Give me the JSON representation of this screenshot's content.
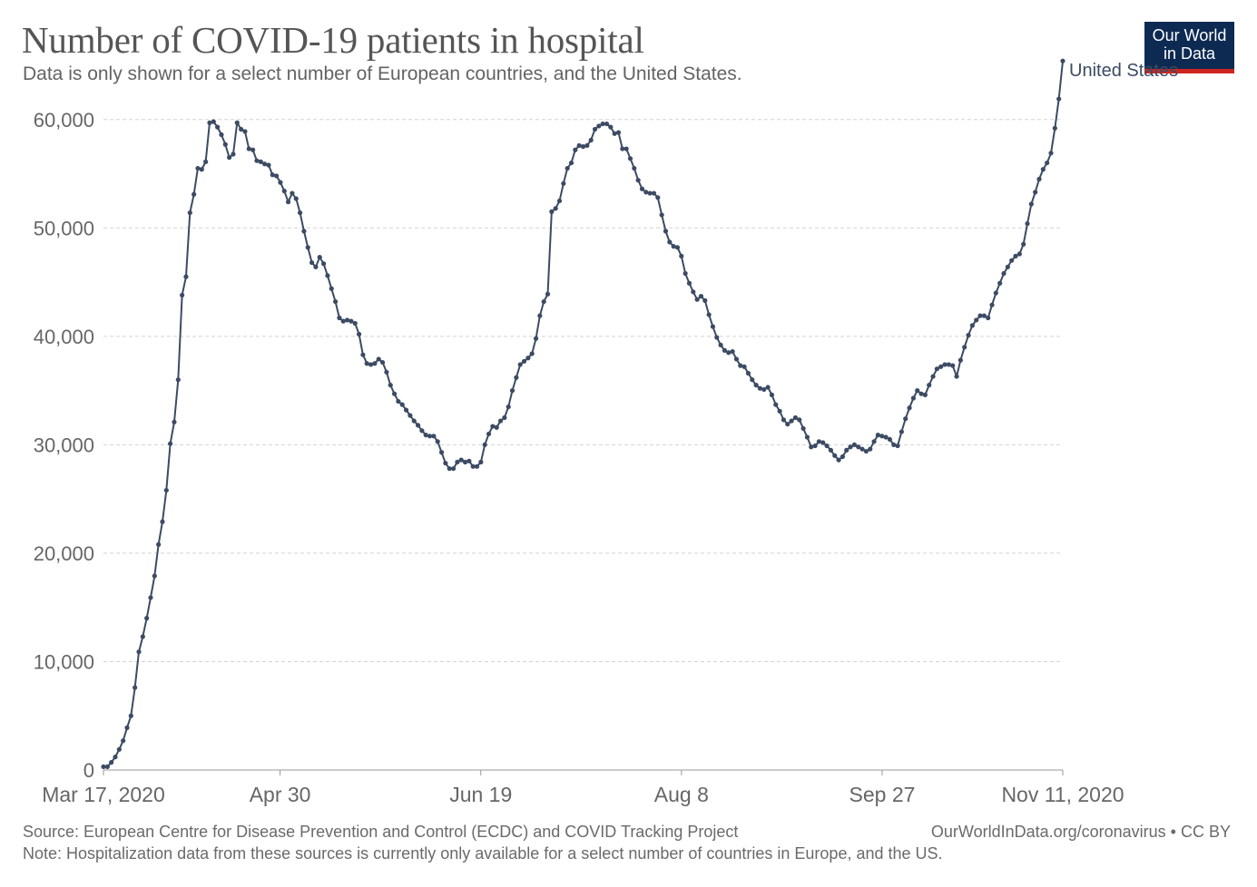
{
  "title": "Number of COVID-19 patients in hospital",
  "subtitle": "Data is only shown for a select number of European countries, and the United States.",
  "logo": {
    "line1": "Our World",
    "line2": "in Data",
    "bg": "#0d2a52",
    "accent": "#ce261e"
  },
  "footer": {
    "source": "Source: European Centre for Disease Prevention and Control (ECDC) and COVID Tracking Project",
    "note": "Note: Hospitalization data from these sources is currently only available for a select number of countries in Europe, and the US.",
    "url_license": "OurWorldInData.org/coronavirus • CC BY"
  },
  "chart_data": {
    "type": "line",
    "x_tick_labels": [
      "Mar 17, 2020",
      "Apr 30",
      "Jun 19",
      "Aug 8",
      "Sep 27",
      "Nov 11, 2020"
    ],
    "x_tick_dates": [
      "2020-03-17",
      "2020-04-30",
      "2020-06-19",
      "2020-08-08",
      "2020-09-27",
      "2020-11-11"
    ],
    "y_ticks": [
      0,
      10000,
      20000,
      30000,
      40000,
      50000,
      60000
    ],
    "y_tick_labels": [
      "0",
      "10,000",
      "20,000",
      "30,000",
      "40,000",
      "50,000",
      "60,000"
    ],
    "ylim": [
      0,
      65000
    ],
    "grid": "horizontal dashed",
    "series": [
      {
        "name": "United States",
        "color": "#3c4b63",
        "start_date": "2020-03-17",
        "values": [
          300,
          300,
          700,
          1200,
          1900,
          2700,
          3900,
          5000,
          7600,
          10900,
          12300,
          14000,
          15900,
          17900,
          20800,
          22900,
          25800,
          30100,
          32100,
          36000,
          43800,
          45500,
          51400,
          53100,
          55500,
          55400,
          56100,
          59700,
          59800,
          59300,
          58600,
          57700,
          56500,
          56800,
          59700,
          59100,
          58900,
          57300,
          57200,
          56200,
          56100,
          55900,
          55800,
          54900,
          54800,
          54200,
          53400,
          52400,
          53200,
          52700,
          51400,
          49700,
          48200,
          46800,
          46400,
          47300,
          46700,
          45600,
          44400,
          43200,
          41700,
          41400,
          41500,
          41400,
          41200,
          40200,
          38300,
          37500,
          37400,
          37500,
          37900,
          37600,
          36700,
          35500,
          34700,
          34000,
          33700,
          33200,
          32700,
          32200,
          31800,
          31300,
          30900,
          30800,
          30800,
          30300,
          29300,
          28300,
          27800,
          27800,
          28400,
          28600,
          28400,
          28500,
          28000,
          28000,
          28400,
          30000,
          31000,
          31700,
          31600,
          32200,
          32500,
          33500,
          35000,
          36200,
          37400,
          37700,
          38000,
          38400,
          39800,
          41900,
          43200,
          43900,
          51500,
          51800,
          52500,
          54100,
          55500,
          56000,
          57200,
          57600,
          57500,
          57600,
          58100,
          59100,
          59400,
          59600,
          59600,
          59300,
          58700,
          58800,
          57300,
          57300,
          56400,
          55500,
          54400,
          53600,
          53300,
          53200,
          53200,
          52800,
          51200,
          49700,
          48700,
          48300,
          48200,
          47400,
          45800,
          44900,
          44100,
          43400,
          43700,
          43300,
          42000,
          40900,
          39900,
          39200,
          38700,
          38500,
          38600,
          37900,
          37300,
          37200,
          36600,
          36000,
          35500,
          35200,
          35100,
          35300,
          34600,
          33700,
          33100,
          32300,
          31900,
          32200,
          32500,
          32300,
          31500,
          30700,
          29800,
          29900,
          30300,
          30200,
          29900,
          29500,
          29000,
          28600,
          28900,
          29500,
          29800,
          30000,
          29800,
          29600,
          29400,
          29600,
          30300,
          30900,
          30800,
          30700,
          30500,
          30000,
          29900,
          31200,
          32400,
          33400,
          34300,
          35000,
          34700,
          34600,
          35500,
          36300,
          37000,
          37200,
          37400,
          37400,
          37300,
          36300,
          37800,
          39000,
          40100,
          41000,
          41500,
          41900,
          41900,
          41700,
          42900,
          44000,
          44900,
          45800,
          46400,
          47000,
          47400,
          47600,
          48500,
          50400,
          52200,
          53300,
          54500,
          55400,
          56000,
          56900,
          59200,
          61900,
          65400
        ]
      }
    ]
  }
}
